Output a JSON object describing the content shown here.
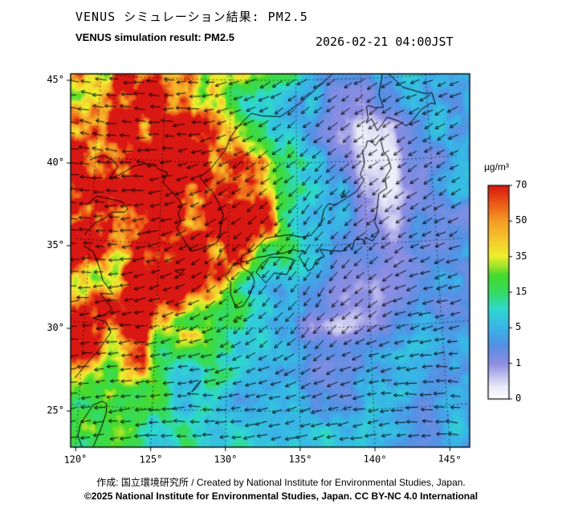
{
  "header": {
    "title_jp": "VENUS シミュレーション結果: PM2.5",
    "title_en": "VENUS simulation result: PM2.5",
    "timestamp": "2026-02-21 04:00JST"
  },
  "map": {
    "lat_ticks": [
      {
        "value": 45,
        "label": "45°"
      },
      {
        "value": 40,
        "label": "40°"
      },
      {
        "value": 35,
        "label": "35°"
      },
      {
        "value": 30,
        "label": "30°"
      },
      {
        "value": 25,
        "label": "25°"
      }
    ],
    "lon_ticks": [
      {
        "value": 120,
        "label": "120°"
      },
      {
        "value": 125,
        "label": "125°"
      },
      {
        "value": 130,
        "label": "130°"
      },
      {
        "value": 135,
        "label": "135°"
      },
      {
        "value": 140,
        "label": "140°"
      },
      {
        "value": 145,
        "label": "145°"
      }
    ],
    "coastlines": [
      [
        [
          119.6,
          39.8
        ],
        [
          119.9,
          39.95
        ],
        [
          120.6,
          40.15
        ],
        [
          121.4,
          39.85
        ],
        [
          121.7,
          39.5
        ],
        [
          121.1,
          38.75
        ],
        [
          121.6,
          38.9
        ],
        [
          122.2,
          39.2
        ],
        [
          122.9,
          39.6
        ],
        [
          123.6,
          39.75
        ],
        [
          124.3,
          39.8
        ],
        [
          124.7,
          39.5
        ],
        [
          125.4,
          39.3
        ],
        [
          125.1,
          38.7
        ],
        [
          126.2,
          37.8
        ],
        [
          126.6,
          37.4
        ],
        [
          126.3,
          36.9
        ],
        [
          126.5,
          36.3
        ],
        [
          126.2,
          36.0
        ],
        [
          126.6,
          35.5
        ],
        [
          127.3,
          34.6
        ],
        [
          127.8,
          34.7
        ],
        [
          128.4,
          34.9
        ],
        [
          129.1,
          35.1
        ],
        [
          129.4,
          35.5
        ],
        [
          129.4,
          36.1
        ],
        [
          129.6,
          36.8
        ],
        [
          129.4,
          37.3
        ],
        [
          128.8,
          38.2
        ],
        [
          128.3,
          38.6
        ],
        [
          127.8,
          39.1
        ],
        [
          128.6,
          39.6
        ],
        [
          129.7,
          40.8
        ],
        [
          130.0,
          41.5
        ],
        [
          130.7,
          42.3
        ],
        [
          131.6,
          43.0
        ],
        [
          132.4,
          42.85
        ],
        [
          133.8,
          42.8
        ],
        [
          135.3,
          43.6
        ],
        [
          136.6,
          44.5
        ],
        [
          137.8,
          45.3
        ],
        [
          138.6,
          46.2
        ],
        [
          138.9,
          46.6
        ]
      ],
      [
        [
          119.6,
          37.1
        ],
        [
          120.3,
          37.65
        ],
        [
          121.2,
          37.55
        ],
        [
          122.2,
          37.4
        ],
        [
          122.6,
          37.0
        ],
        [
          122.4,
          36.8
        ],
        [
          121.5,
          36.75
        ],
        [
          120.9,
          36.3
        ],
        [
          120.3,
          36.05
        ],
        [
          119.9,
          35.6
        ],
        [
          119.6,
          35.3
        ]
      ],
      [
        [
          119.6,
          34.6
        ],
        [
          120.3,
          34.3
        ],
        [
          120.9,
          33.2
        ],
        [
          121.1,
          32.6
        ],
        [
          121.9,
          31.8
        ],
        [
          121.0,
          31.8
        ],
        [
          121.9,
          30.9
        ],
        [
          121.4,
          30.5
        ],
        [
          120.6,
          30.3
        ],
        [
          121.5,
          30.1
        ],
        [
          121.9,
          29.5
        ],
        [
          121.5,
          28.9
        ],
        [
          121.0,
          28.2
        ],
        [
          120.6,
          27.8
        ],
        [
          120.1,
          27.2
        ],
        [
          119.8,
          26.8
        ],
        [
          119.6,
          26.6
        ]
      ],
      [
        [
          121.9,
          25.15
        ],
        [
          121.6,
          25.3
        ],
        [
          121.0,
          25.05
        ],
        [
          120.7,
          24.6
        ],
        [
          120.2,
          23.8
        ],
        [
          120.1,
          23.1
        ],
        [
          120.4,
          22.5
        ],
        [
          120.9,
          22.0
        ],
        [
          121.2,
          22.6
        ],
        [
          121.6,
          23.6
        ],
        [
          121.9,
          24.6
        ],
        [
          121.9,
          25.15
        ]
      ],
      [
        [
          130.2,
          33.6
        ],
        [
          129.8,
          33.1
        ],
        [
          130.2,
          32.8
        ],
        [
          130.2,
          32.1
        ],
        [
          130.6,
          31.2
        ],
        [
          131.1,
          31.35
        ],
        [
          131.5,
          31.9
        ],
        [
          131.9,
          32.8
        ],
        [
          131.7,
          33.3
        ],
        [
          131.0,
          33.65
        ],
        [
          130.9,
          33.9
        ],
        [
          130.4,
          33.93
        ],
        [
          130.2,
          33.6
        ]
      ],
      [
        [
          132.0,
          33.4
        ],
        [
          132.7,
          32.75
        ],
        [
          133.3,
          33.35
        ],
        [
          134.2,
          33.25
        ],
        [
          134.7,
          34.15
        ],
        [
          134.0,
          34.3
        ],
        [
          133.0,
          34.3
        ],
        [
          132.4,
          33.9
        ],
        [
          132.0,
          33.4
        ]
      ],
      [
        [
          130.9,
          34.0
        ],
        [
          131.4,
          34.05
        ],
        [
          132.1,
          34.3
        ],
        [
          132.6,
          34.35
        ],
        [
          133.3,
          34.5
        ],
        [
          134.0,
          34.55
        ],
        [
          134.7,
          34.75
        ],
        [
          135.1,
          34.65
        ],
        [
          135.4,
          34.7
        ],
        [
          135.1,
          34.3
        ],
        [
          135.7,
          33.45
        ],
        [
          136.05,
          33.6
        ],
        [
          136.3,
          34.1
        ],
        [
          136.9,
          34.3
        ],
        [
          136.6,
          34.75
        ],
        [
          137.3,
          34.65
        ],
        [
          138.2,
          34.6
        ],
        [
          138.7,
          35.0
        ],
        [
          138.9,
          34.65
        ],
        [
          139.1,
          35.25
        ],
        [
          139.7,
          35.3
        ],
        [
          139.8,
          34.95
        ],
        [
          139.9,
          35.4
        ],
        [
          140.4,
          35.15
        ],
        [
          140.9,
          35.7
        ],
        [
          140.6,
          36.3
        ],
        [
          140.8,
          36.9
        ],
        [
          141.0,
          38.0
        ],
        [
          141.6,
          38.3
        ],
        [
          141.5,
          38.9
        ],
        [
          142.0,
          39.5
        ],
        [
          141.8,
          40.2
        ],
        [
          141.5,
          40.5
        ],
        [
          141.3,
          41.3
        ],
        [
          140.9,
          40.9
        ],
        [
          140.6,
          41.2
        ],
        [
          140.3,
          41.2
        ],
        [
          140.2,
          40.85
        ],
        [
          139.9,
          40.6
        ],
        [
          140.05,
          39.9
        ],
        [
          139.7,
          39.2
        ],
        [
          139.95,
          38.85
        ],
        [
          139.4,
          38.2
        ],
        [
          138.6,
          37.8
        ],
        [
          137.8,
          37.4
        ],
        [
          137.3,
          37.5
        ],
        [
          136.95,
          37.15
        ],
        [
          136.7,
          36.3
        ],
        [
          135.95,
          35.6
        ],
        [
          135.3,
          35.5
        ],
        [
          134.4,
          35.65
        ],
        [
          133.4,
          35.55
        ],
        [
          132.7,
          35.45
        ],
        [
          131.8,
          34.7
        ],
        [
          131.0,
          34.4
        ],
        [
          130.9,
          34.0
        ]
      ],
      [
        [
          140.45,
          42.6
        ],
        [
          140.3,
          42.3
        ],
        [
          140.7,
          42.55
        ],
        [
          141.1,
          41.8
        ],
        [
          141.9,
          42.6
        ],
        [
          142.8,
          42.3
        ],
        [
          143.3,
          42.0
        ],
        [
          143.8,
          42.3
        ],
        [
          144.5,
          42.95
        ],
        [
          145.3,
          43.3
        ],
        [
          145.6,
          43.2
        ],
        [
          145.4,
          43.9
        ],
        [
          144.8,
          43.9
        ],
        [
          144.1,
          44.1
        ],
        [
          143.2,
          44.35
        ],
        [
          142.3,
          45.1
        ],
        [
          141.7,
          45.4
        ],
        [
          141.6,
          44.9
        ],
        [
          141.35,
          44.0
        ],
        [
          141.65,
          43.2
        ],
        [
          141.0,
          43.2
        ],
        [
          140.5,
          43.35
        ],
        [
          140.35,
          43.25
        ],
        [
          140.45,
          42.6
        ]
      ],
      [
        [
          141.9,
          46.6
        ],
        [
          142.0,
          46.0
        ],
        [
          142.2,
          46.3
        ],
        [
          142.3,
          46.6
        ]
      ],
      [
        [
          126.2,
          33.4
        ],
        [
          126.9,
          33.5
        ],
        [
          126.6,
          33.2
        ],
        [
          126.2,
          33.4
        ]
      ],
      [
        [
          127.65,
          26.1
        ],
        [
          128.0,
          26.4
        ],
        [
          128.25,
          26.8
        ],
        [
          128.0,
          26.55
        ],
        [
          127.65,
          26.1
        ]
      ],
      [
        [
          129.3,
          28.2
        ],
        [
          129.7,
          28.5
        ]
      ],
      [
        [
          130.4,
          30.4
        ],
        [
          130.7,
          30.7
        ],
        [
          131.0,
          30.55
        ]
      ],
      [
        [
          129.2,
          34.1
        ],
        [
          129.5,
          34.6
        ]
      ],
      [
        [
          138.2,
          38.0
        ],
        [
          138.5,
          38.3
        ],
        [
          138.3,
          37.8
        ],
        [
          138.2,
          38.0
        ]
      ]
    ]
  },
  "colorbar": {
    "unit": "µg/m³",
    "ticks": [
      "70",
      "50",
      "35",
      "15",
      "5",
      "1",
      "0"
    ],
    "stops": [
      [
        0.0,
        "#ffffff"
      ],
      [
        0.06,
        "#e9e9f9"
      ],
      [
        0.167,
        "#8d8de2"
      ],
      [
        0.25,
        "#5590e4"
      ],
      [
        0.333,
        "#3ab4e8"
      ],
      [
        0.42,
        "#2fd9d0"
      ],
      [
        0.5,
        "#35dc62"
      ],
      [
        0.58,
        "#46da2c"
      ],
      [
        0.62,
        "#9ae52c"
      ],
      [
        0.667,
        "#eef02e"
      ],
      [
        0.75,
        "#f7c72e"
      ],
      [
        0.833,
        "#f59b25"
      ],
      [
        0.92,
        "#eb5517"
      ],
      [
        1.0,
        "#d91713"
      ]
    ]
  },
  "footer": {
    "credit": "作成: 国立環境研究所 / Created by National Institute for Environmental Studies, Japan.",
    "copyright": "©2025 National Institute for Environmental Studies, Japan. CC BY-NC 4.0 International"
  },
  "chart_data": {
    "type": "heatmap",
    "title": "VENUS simulation result: PM2.5",
    "unit": "µg/m³",
    "value_scale_ticks": [
      0,
      1,
      5,
      15,
      35,
      50,
      70
    ],
    "lon_start": 120,
    "lon_step": 2,
    "lat_start": 46,
    "lat_step": -2,
    "pm25": [
      [
        20,
        60,
        85,
        75,
        35,
        25,
        22,
        12,
        6,
        5,
        5,
        5,
        6,
        6
      ],
      [
        55,
        80,
        90,
        80,
        40,
        25,
        15,
        8,
        4,
        2,
        1.5,
        2,
        4,
        5
      ],
      [
        70,
        85,
        90,
        85,
        70,
        35,
        18,
        8,
        3,
        1,
        0.4,
        0.8,
        3,
        5
      ],
      [
        65,
        80,
        90,
        90,
        85,
        60,
        30,
        12,
        5,
        1.5,
        0.3,
        0.4,
        2,
        4
      ],
      [
        75,
        85,
        90,
        90,
        88,
        80,
        50,
        20,
        8,
        3,
        0.8,
        0.5,
        2,
        4
      ],
      [
        60,
        75,
        88,
        92,
        90,
        85,
        55,
        25,
        10,
        4,
        1.5,
        1,
        2,
        3
      ],
      [
        55,
        70,
        82,
        88,
        80,
        45,
        22,
        12,
        6,
        2.5,
        1.5,
        1.5,
        2.5,
        3
      ],
      [
        55,
        68,
        78,
        70,
        45,
        22,
        10,
        5,
        3,
        1.5,
        1,
        1.5,
        3,
        4
      ],
      [
        60,
        72,
        60,
        38,
        22,
        12,
        6,
        3,
        0.8,
        0.4,
        0.8,
        2,
        3,
        4
      ],
      [
        68,
        55,
        32,
        18,
        12,
        8,
        5,
        3.5,
        2.5,
        2,
        3,
        4,
        4.5,
        5
      ],
      [
        35,
        24,
        18,
        13,
        10,
        7,
        6,
        5,
        4,
        4.5,
        5,
        5,
        4.5,
        4
      ],
      [
        18,
        15,
        12,
        10,
        9,
        7,
        6,
        5.5,
        5,
        5,
        5,
        4.5,
        4,
        4
      ]
    ],
    "wind_lon_start": 120,
    "wind_lon_step": 4,
    "wind_lat_start": 46,
    "wind_lat_step": -4,
    "wind_dir_deg": [
      [
        185,
        182,
        178,
        160,
        150,
        152,
        160
      ],
      [
        190,
        184,
        172,
        152,
        140,
        142,
        150
      ],
      [
        186,
        176,
        154,
        140,
        133,
        138,
        148
      ],
      [
        180,
        168,
        148,
        130,
        124,
        138,
        158
      ],
      [
        176,
        170,
        156,
        140,
        130,
        148,
        168
      ],
      [
        170,
        174,
        180,
        172,
        162,
        172,
        182
      ]
    ]
  }
}
